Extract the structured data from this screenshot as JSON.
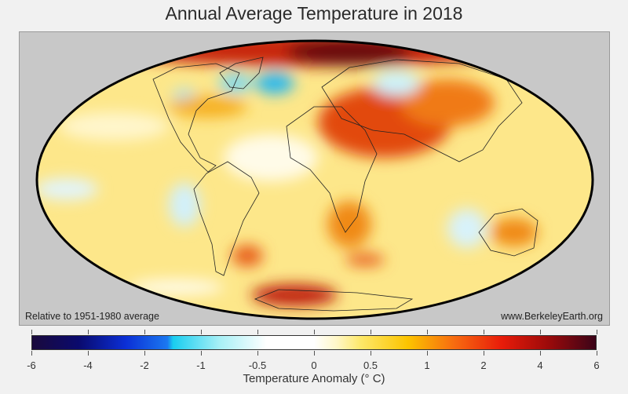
{
  "title": "Annual Average Temperature in 2018",
  "footer": {
    "left": "Relative to 1951-1980 average",
    "right": "www.BerkeleyEarth.org"
  },
  "colorbar": {
    "label": "Temperature Anomaly (° C)",
    "ticks": [
      "-6",
      "-4",
      "-2",
      "-1",
      "-0.5",
      "0",
      "0.5",
      "1",
      "2",
      "4",
      "6"
    ],
    "range": [
      -6,
      6
    ],
    "colors": {
      "min": "#1a0a3c",
      "cold": "#19cdf0",
      "neutral": "#ffffff",
      "warm": "#fcc400",
      "hot": "#e81c0a",
      "max": "#3a0418"
    }
  },
  "map": {
    "projection": "Mollweide",
    "panel_color": "#c8c8c8"
  }
}
